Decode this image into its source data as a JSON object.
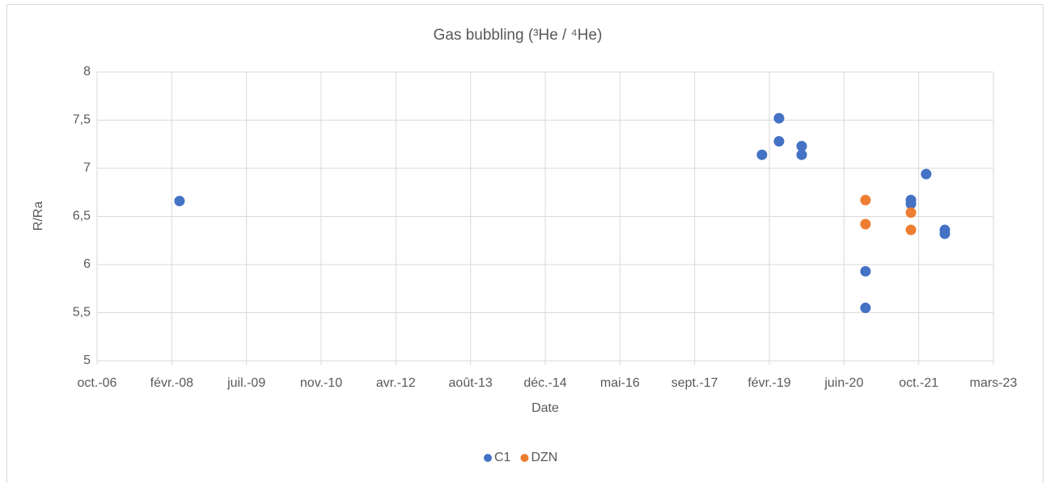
{
  "chart_data": {
    "type": "scatter",
    "title": "Gas bubbling (³He / ⁴He)",
    "x_label": "Date",
    "y_label": "R/Ra",
    "xlim": [
      39000,
      45000
    ],
    "xticks": [
      {
        "value": 39000,
        "label": "oct.-06"
      },
      {
        "value": 39500,
        "label": "févr.-08"
      },
      {
        "value": 40000,
        "label": "juil.-09"
      },
      {
        "value": 40500,
        "label": "nov.-10"
      },
      {
        "value": 41000,
        "label": "avr.-12"
      },
      {
        "value": 41500,
        "label": "août-13"
      },
      {
        "value": 42000,
        "label": "déc.-14"
      },
      {
        "value": 42500,
        "label": "mai-16"
      },
      {
        "value": 43000,
        "label": "sept.-17"
      },
      {
        "value": 43500,
        "label": "févr.-19"
      },
      {
        "value": 44000,
        "label": "juin-20"
      },
      {
        "value": 44500,
        "label": "oct.-21"
      },
      {
        "value": 45000,
        "label": "mars-23"
      }
    ],
    "ylim": [
      5,
      8
    ],
    "yticks": [
      5,
      {
        "value": 5.5,
        "label": "5,5"
      },
      6,
      {
        "value": 6.5,
        "label": "6,5"
      },
      7,
      {
        "value": 7.5,
        "label": "7,5"
      },
      8
    ],
    "grid": true,
    "legend": "bottom",
    "series": [
      {
        "name": "C1",
        "color": "#4472c4",
        "x": [
          39552,
          43451,
          43565,
          43565,
          43717,
          43717,
          44144,
          44144,
          44448,
          44448,
          44550,
          44675,
          44675
        ],
        "values": [
          6.66,
          7.14,
          7.52,
          7.28,
          7.23,
          7.14,
          5.93,
          5.55,
          6.67,
          6.63,
          6.94,
          6.36,
          6.32
        ]
      },
      {
        "name": "DZN",
        "color": "#ed7d31",
        "x": [
          44144,
          44144,
          44448,
          44448
        ],
        "values": [
          6.67,
          6.42,
          6.54,
          6.36
        ]
      }
    ]
  }
}
